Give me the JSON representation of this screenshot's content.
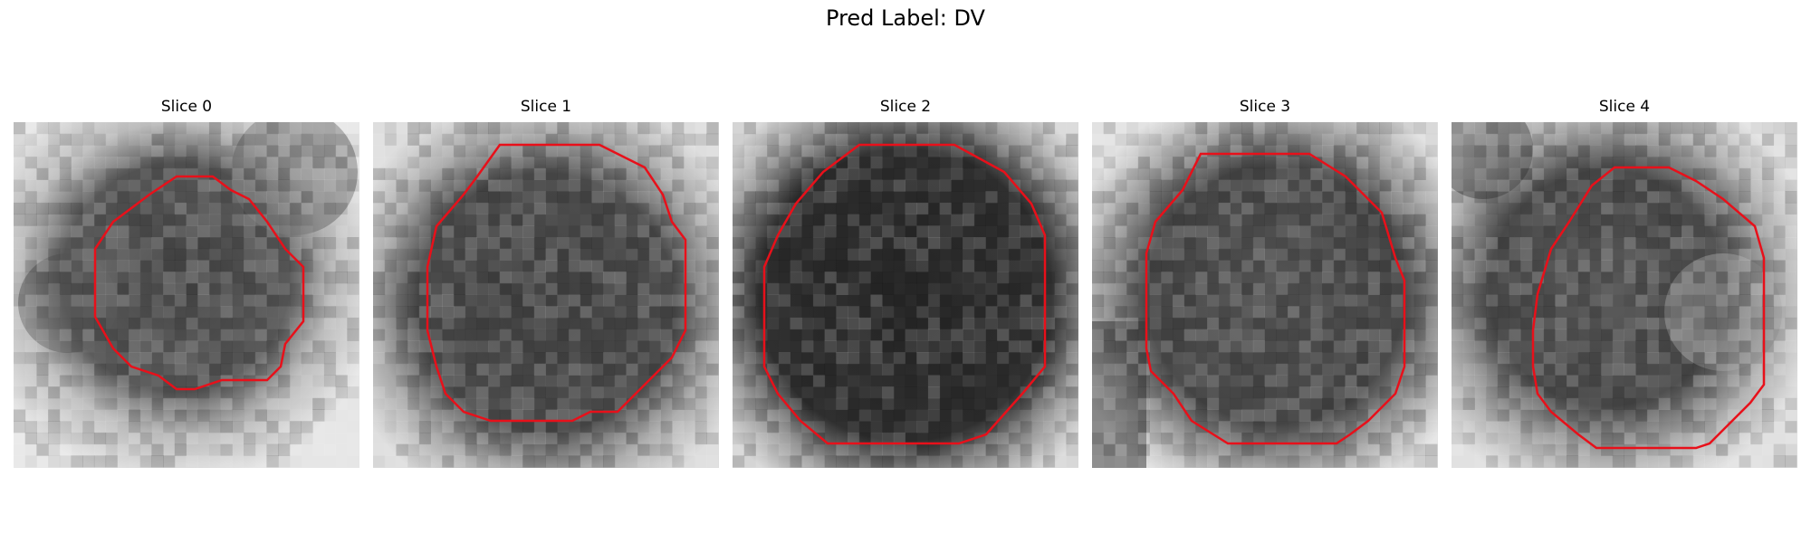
{
  "figure": {
    "title": "Pred Label: DV"
  },
  "slices": [
    {
      "title": "Slice 0"
    },
    {
      "title": "Slice 1"
    },
    {
      "title": "Slice 2"
    },
    {
      "title": "Slice 3"
    },
    {
      "title": "Slice 4"
    }
  ],
  "colors": {
    "contour": "#e8101a",
    "colormap": "grayscale"
  }
}
